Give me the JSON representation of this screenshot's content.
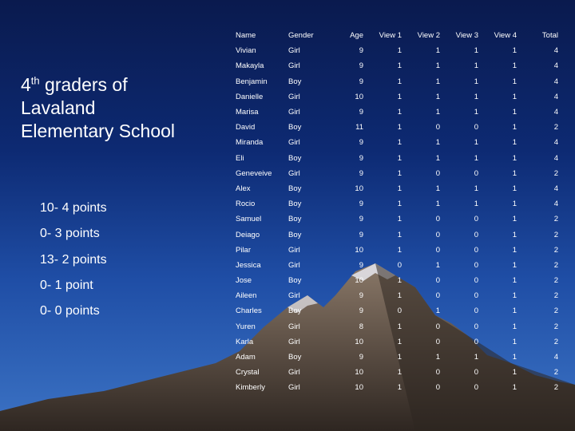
{
  "title": {
    "line1_prefix": "4",
    "line1_sup": "th",
    "line1_suffix": " graders of",
    "line2": "Lavaland",
    "line3": "Elementary School"
  },
  "legend": [
    "10- 4 points",
    "0- 3 points",
    "13- 2 points",
    "0- 1 point",
    "0- 0 points"
  ],
  "table": {
    "headers": [
      "Name",
      "Gender",
      "Age",
      "View 1",
      "View 2",
      "View 3",
      "View 4",
      "Total"
    ],
    "rows": [
      [
        "Vivian",
        "Girl",
        "9",
        "1",
        "1",
        "1",
        "1",
        "4"
      ],
      [
        "Makayla",
        "Girl",
        "9",
        "1",
        "1",
        "1",
        "1",
        "4"
      ],
      [
        "Benjamin",
        "Boy",
        "9",
        "1",
        "1",
        "1",
        "1",
        "4"
      ],
      [
        "Danielle",
        "Girl",
        "10",
        "1",
        "1",
        "1",
        "1",
        "4"
      ],
      [
        "Marisa",
        "Girl",
        "9",
        "1",
        "1",
        "1",
        "1",
        "4"
      ],
      [
        "David",
        "Boy",
        "11",
        "1",
        "0",
        "0",
        "1",
        "2"
      ],
      [
        "Miranda",
        "Girl",
        "9",
        "1",
        "1",
        "1",
        "1",
        "4"
      ],
      [
        "Eli",
        "Boy",
        "9",
        "1",
        "1",
        "1",
        "1",
        "4"
      ],
      [
        "Geneveive",
        "Girl",
        "9",
        "1",
        "0",
        "0",
        "1",
        "2"
      ],
      [
        "Alex",
        "Boy",
        "10",
        "1",
        "1",
        "1",
        "1",
        "4"
      ],
      [
        "Rocio",
        "Boy",
        "9",
        "1",
        "1",
        "1",
        "1",
        "4"
      ],
      [
        "Samuel",
        "Boy",
        "9",
        "1",
        "0",
        "0",
        "1",
        "2"
      ],
      [
        "Deiago",
        "Boy",
        "9",
        "1",
        "0",
        "0",
        "1",
        "2"
      ],
      [
        "Pilar",
        "Girl",
        "10",
        "1",
        "0",
        "0",
        "1",
        "2"
      ],
      [
        "Jessica",
        "Girl",
        "9",
        "0",
        "1",
        "0",
        "1",
        "2"
      ],
      [
        "Jose",
        "Boy",
        "10",
        "1",
        "0",
        "0",
        "1",
        "2"
      ],
      [
        "Aileen",
        "Girl",
        "9",
        "1",
        "0",
        "0",
        "1",
        "2"
      ],
      [
        "Charles",
        "Boy",
        "9",
        "0",
        "1",
        "0",
        "1",
        "2"
      ],
      [
        "Yuren",
        "Girl",
        "8",
        "1",
        "0",
        "0",
        "1",
        "2"
      ],
      [
        "Karla",
        "Girl",
        "10",
        "1",
        "0",
        "0",
        "1",
        "2"
      ],
      [
        "Adam",
        "Boy",
        "9",
        "1",
        "1",
        "1",
        "1",
        "4"
      ],
      [
        "Crystal",
        "Girl",
        "10",
        "1",
        "0",
        "0",
        "1",
        "2"
      ],
      [
        "Kimberly",
        "Girl",
        "10",
        "1",
        "0",
        "0",
        "1",
        "2"
      ]
    ]
  },
  "colors": {
    "background_top": "#0a1a4e",
    "background_bottom": "#3c73c4",
    "mountain": "#6e5e52",
    "mountain_dark": "#3d332d",
    "snow": "#e8e8ee"
  }
}
